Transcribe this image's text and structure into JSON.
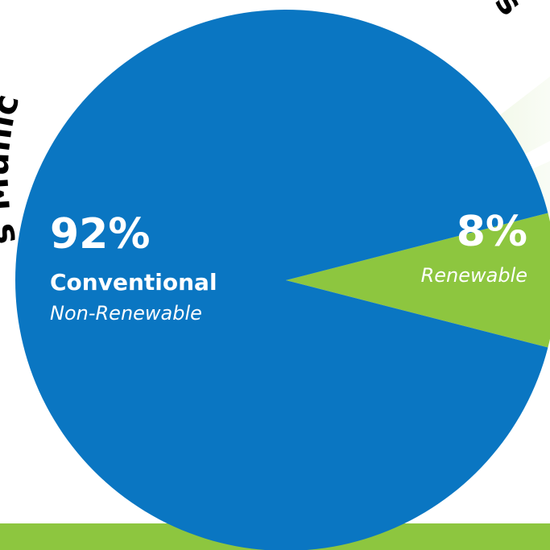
{
  "title": {
    "left_fragment": "s Munic",
    "right_fragment": "rces"
  },
  "chart_data": {
    "type": "pie",
    "slices": [
      {
        "label": "Conventional",
        "sublabel": "Non-Renewable",
        "value": 92,
        "display": "92%",
        "color": "#0a76c2"
      },
      {
        "label": "",
        "sublabel": "Renewable",
        "value": 8,
        "display": "8%",
        "color": "#8dc63f"
      }
    ],
    "legend": "none"
  },
  "colors": {
    "bottom_band": "#8dc63f",
    "ray_light": "#e6f1d6"
  }
}
